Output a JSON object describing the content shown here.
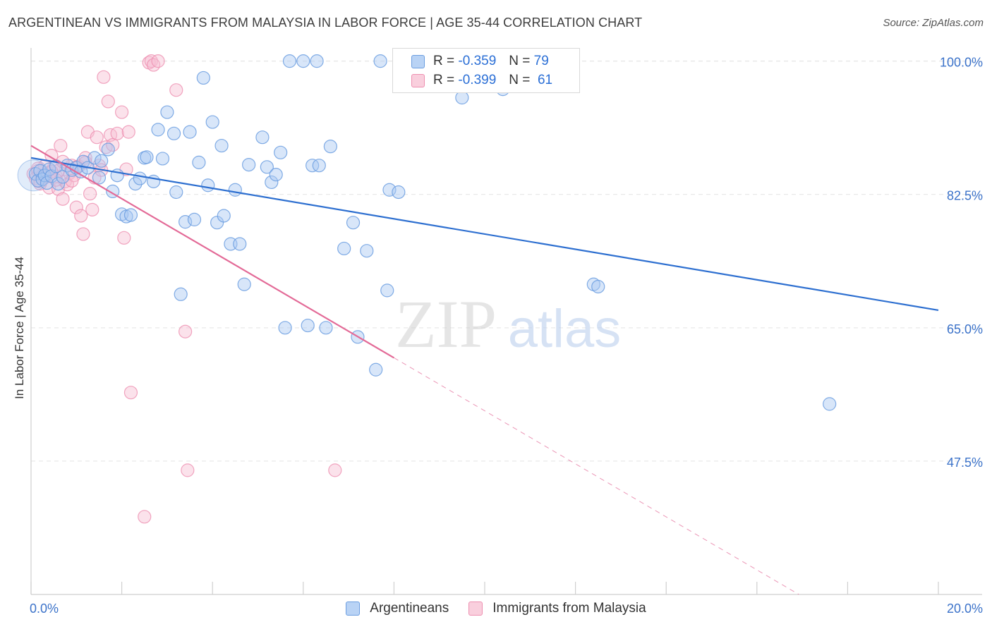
{
  "title": "ARGENTINEAN VS IMMIGRANTS FROM MALAYSIA IN LABOR FORCE | AGE 35-44 CORRELATION CHART",
  "source": "Source: ZipAtlas.com",
  "watermark": {
    "zip": "ZIP",
    "atlas": "atlas"
  },
  "legend": {
    "r_label": "R =",
    "n_label": "N =",
    "argentineans": {
      "r": "-0.359",
      "n": "79"
    },
    "malaysia": {
      "r": "-0.399",
      "n": "61"
    }
  },
  "colors": {
    "blue_fill": "#a9c8f2",
    "blue_stroke": "#6b9de0",
    "blue_line": "#2d6fd0",
    "pink_fill": "#f7bfd2",
    "pink_stroke": "#ee8fb0",
    "pink_line": "#e36a97",
    "axis_text": "#3b72c9"
  },
  "chart_data": {
    "type": "scatter",
    "title": "ARGENTINEAN VS IMMIGRANTS FROM MALAYSIA IN LABOR FORCE | AGE 35-44 CORRELATION CHART",
    "xlabel": "",
    "ylabel": "In Labor Force | Age 35-44",
    "xlim": [
      0.0,
      20.0
    ],
    "ylim": [
      30.0,
      100.8
    ],
    "x_tick_labels": [
      "0.0%",
      "20.0%"
    ],
    "y_ticks": [
      47.5,
      65.0,
      82.5,
      100.0
    ],
    "y_tick_labels": [
      "47.5%",
      "65.0%",
      "82.5%",
      "100.0%"
    ],
    "series": [
      {
        "name": "Argentineans",
        "r": -0.359,
        "n": 79,
        "trend": {
          "x0": 0.0,
          "y0": 87.3,
          "x1": 20.0,
          "y1": 67.3,
          "solid_until": 20.0
        },
        "points": [
          [
            0.1,
            85.2
          ],
          [
            0.15,
            84.3
          ],
          [
            0.2,
            85.6
          ],
          [
            0.25,
            84.5
          ],
          [
            0.3,
            85.0
          ],
          [
            0.35,
            84.0
          ],
          [
            0.4,
            85.8
          ],
          [
            0.45,
            84.9
          ],
          [
            0.55,
            86.2
          ],
          [
            0.6,
            83.9
          ],
          [
            0.7,
            84.8
          ],
          [
            0.8,
            86.3
          ],
          [
            0.9,
            85.7
          ],
          [
            1.0,
            86.0
          ],
          [
            1.1,
            85.5
          ],
          [
            1.15,
            86.8
          ],
          [
            1.25,
            86.0
          ],
          [
            1.4,
            87.3
          ],
          [
            1.5,
            84.7
          ],
          [
            1.55,
            86.9
          ],
          [
            1.7,
            88.4
          ],
          [
            1.8,
            82.9
          ],
          [
            1.9,
            85.0
          ],
          [
            2.0,
            79.9
          ],
          [
            2.1,
            79.6
          ],
          [
            2.2,
            79.8
          ],
          [
            2.3,
            83.9
          ],
          [
            2.4,
            84.6
          ],
          [
            2.5,
            87.3
          ],
          [
            2.55,
            87.4
          ],
          [
            2.7,
            84.2
          ],
          [
            2.8,
            91.0
          ],
          [
            2.9,
            87.2
          ],
          [
            3.0,
            93.3
          ],
          [
            3.15,
            90.5
          ],
          [
            3.2,
            82.8
          ],
          [
            3.3,
            69.4
          ],
          [
            3.4,
            78.9
          ],
          [
            3.5,
            90.7
          ],
          [
            3.6,
            79.2
          ],
          [
            3.7,
            86.7
          ],
          [
            3.8,
            97.8
          ],
          [
            3.9,
            83.7
          ],
          [
            4.0,
            92.0
          ],
          [
            4.1,
            78.8
          ],
          [
            4.2,
            88.9
          ],
          [
            4.25,
            79.7
          ],
          [
            4.4,
            76.0
          ],
          [
            4.5,
            83.1
          ],
          [
            4.6,
            76.0
          ],
          [
            4.7,
            70.7
          ],
          [
            4.8,
            86.4
          ],
          [
            5.1,
            90.0
          ],
          [
            5.2,
            86.1
          ],
          [
            5.3,
            84.1
          ],
          [
            5.4,
            85.1
          ],
          [
            5.5,
            88.0
          ],
          [
            5.6,
            65.0
          ],
          [
            5.7,
            100.0
          ],
          [
            6.0,
            100.0
          ],
          [
            6.1,
            65.3
          ],
          [
            6.2,
            86.3
          ],
          [
            6.3,
            100.0
          ],
          [
            6.35,
            86.3
          ],
          [
            6.5,
            65.0
          ],
          [
            6.6,
            88.8
          ],
          [
            6.9,
            75.4
          ],
          [
            7.1,
            78.8
          ],
          [
            7.2,
            63.8
          ],
          [
            7.4,
            75.1
          ],
          [
            7.6,
            59.5
          ],
          [
            7.7,
            100.0
          ],
          [
            7.85,
            69.9
          ],
          [
            7.9,
            83.1
          ],
          [
            8.1,
            82.8
          ],
          [
            9.5,
            95.2
          ],
          [
            10.4,
            96.3
          ],
          [
            12.4,
            70.7
          ],
          [
            12.5,
            70.4
          ],
          [
            17.6,
            55.0
          ]
        ]
      },
      {
        "name": "Immigrants from Malaysia",
        "r": -0.399,
        "n": 61,
        "trend": {
          "x0": 0.0,
          "y0": 88.9,
          "x1": 20.0,
          "y1": 19.3,
          "solid_until": 8.0
        },
        "points": [
          [
            0.05,
            85.2
          ],
          [
            0.1,
            84.6
          ],
          [
            0.15,
            85.6
          ],
          [
            0.2,
            84.2
          ],
          [
            0.25,
            85.0
          ],
          [
            0.3,
            84.7
          ],
          [
            0.35,
            85.3
          ],
          [
            0.4,
            83.4
          ],
          [
            0.45,
            87.6
          ],
          [
            0.5,
            86.0
          ],
          [
            0.55,
            84.9
          ],
          [
            0.6,
            83.2
          ],
          [
            0.65,
            88.9
          ],
          [
            0.7,
            81.9
          ],
          [
            0.75,
            84.2
          ],
          [
            0.8,
            83.8
          ],
          [
            0.85,
            85.3
          ],
          [
            0.9,
            86.3
          ],
          [
            0.95,
            85.0
          ],
          [
            1.0,
            80.8
          ],
          [
            1.05,
            86.2
          ],
          [
            1.1,
            79.7
          ],
          [
            1.15,
            77.3
          ],
          [
            1.2,
            87.3
          ],
          [
            1.25,
            90.7
          ],
          [
            1.3,
            82.6
          ],
          [
            1.35,
            80.5
          ],
          [
            1.4,
            84.7
          ],
          [
            1.45,
            90.0
          ],
          [
            1.5,
            86.3
          ],
          [
            1.55,
            85.7
          ],
          [
            1.6,
            97.9
          ],
          [
            1.65,
            88.7
          ],
          [
            1.7,
            94.7
          ],
          [
            1.75,
            90.3
          ],
          [
            1.8,
            89.0
          ],
          [
            1.9,
            90.5
          ],
          [
            2.0,
            93.3
          ],
          [
            2.05,
            76.8
          ],
          [
            2.1,
            85.8
          ],
          [
            2.15,
            90.7
          ],
          [
            2.2,
            56.5
          ],
          [
            2.5,
            40.2
          ],
          [
            2.6,
            99.8
          ],
          [
            2.65,
            100.0
          ],
          [
            2.7,
            99.5
          ],
          [
            2.8,
            100.0
          ],
          [
            3.2,
            96.2
          ],
          [
            3.4,
            64.5
          ],
          [
            3.45,
            46.3
          ],
          [
            6.7,
            46.3
          ],
          [
            0.3,
            86.2
          ],
          [
            0.6,
            85.6
          ],
          [
            0.9,
            84.3
          ],
          [
            1.2,
            86.7
          ],
          [
            0.2,
            83.9
          ],
          [
            0.45,
            85.5
          ],
          [
            0.7,
            86.8
          ],
          [
            0.15,
            85.9
          ],
          [
            1.0,
            86.1
          ],
          [
            0.55,
            84.4
          ]
        ]
      }
    ]
  },
  "bottom_legend": [
    "Argentineans",
    "Immigrants from Malaysia"
  ]
}
